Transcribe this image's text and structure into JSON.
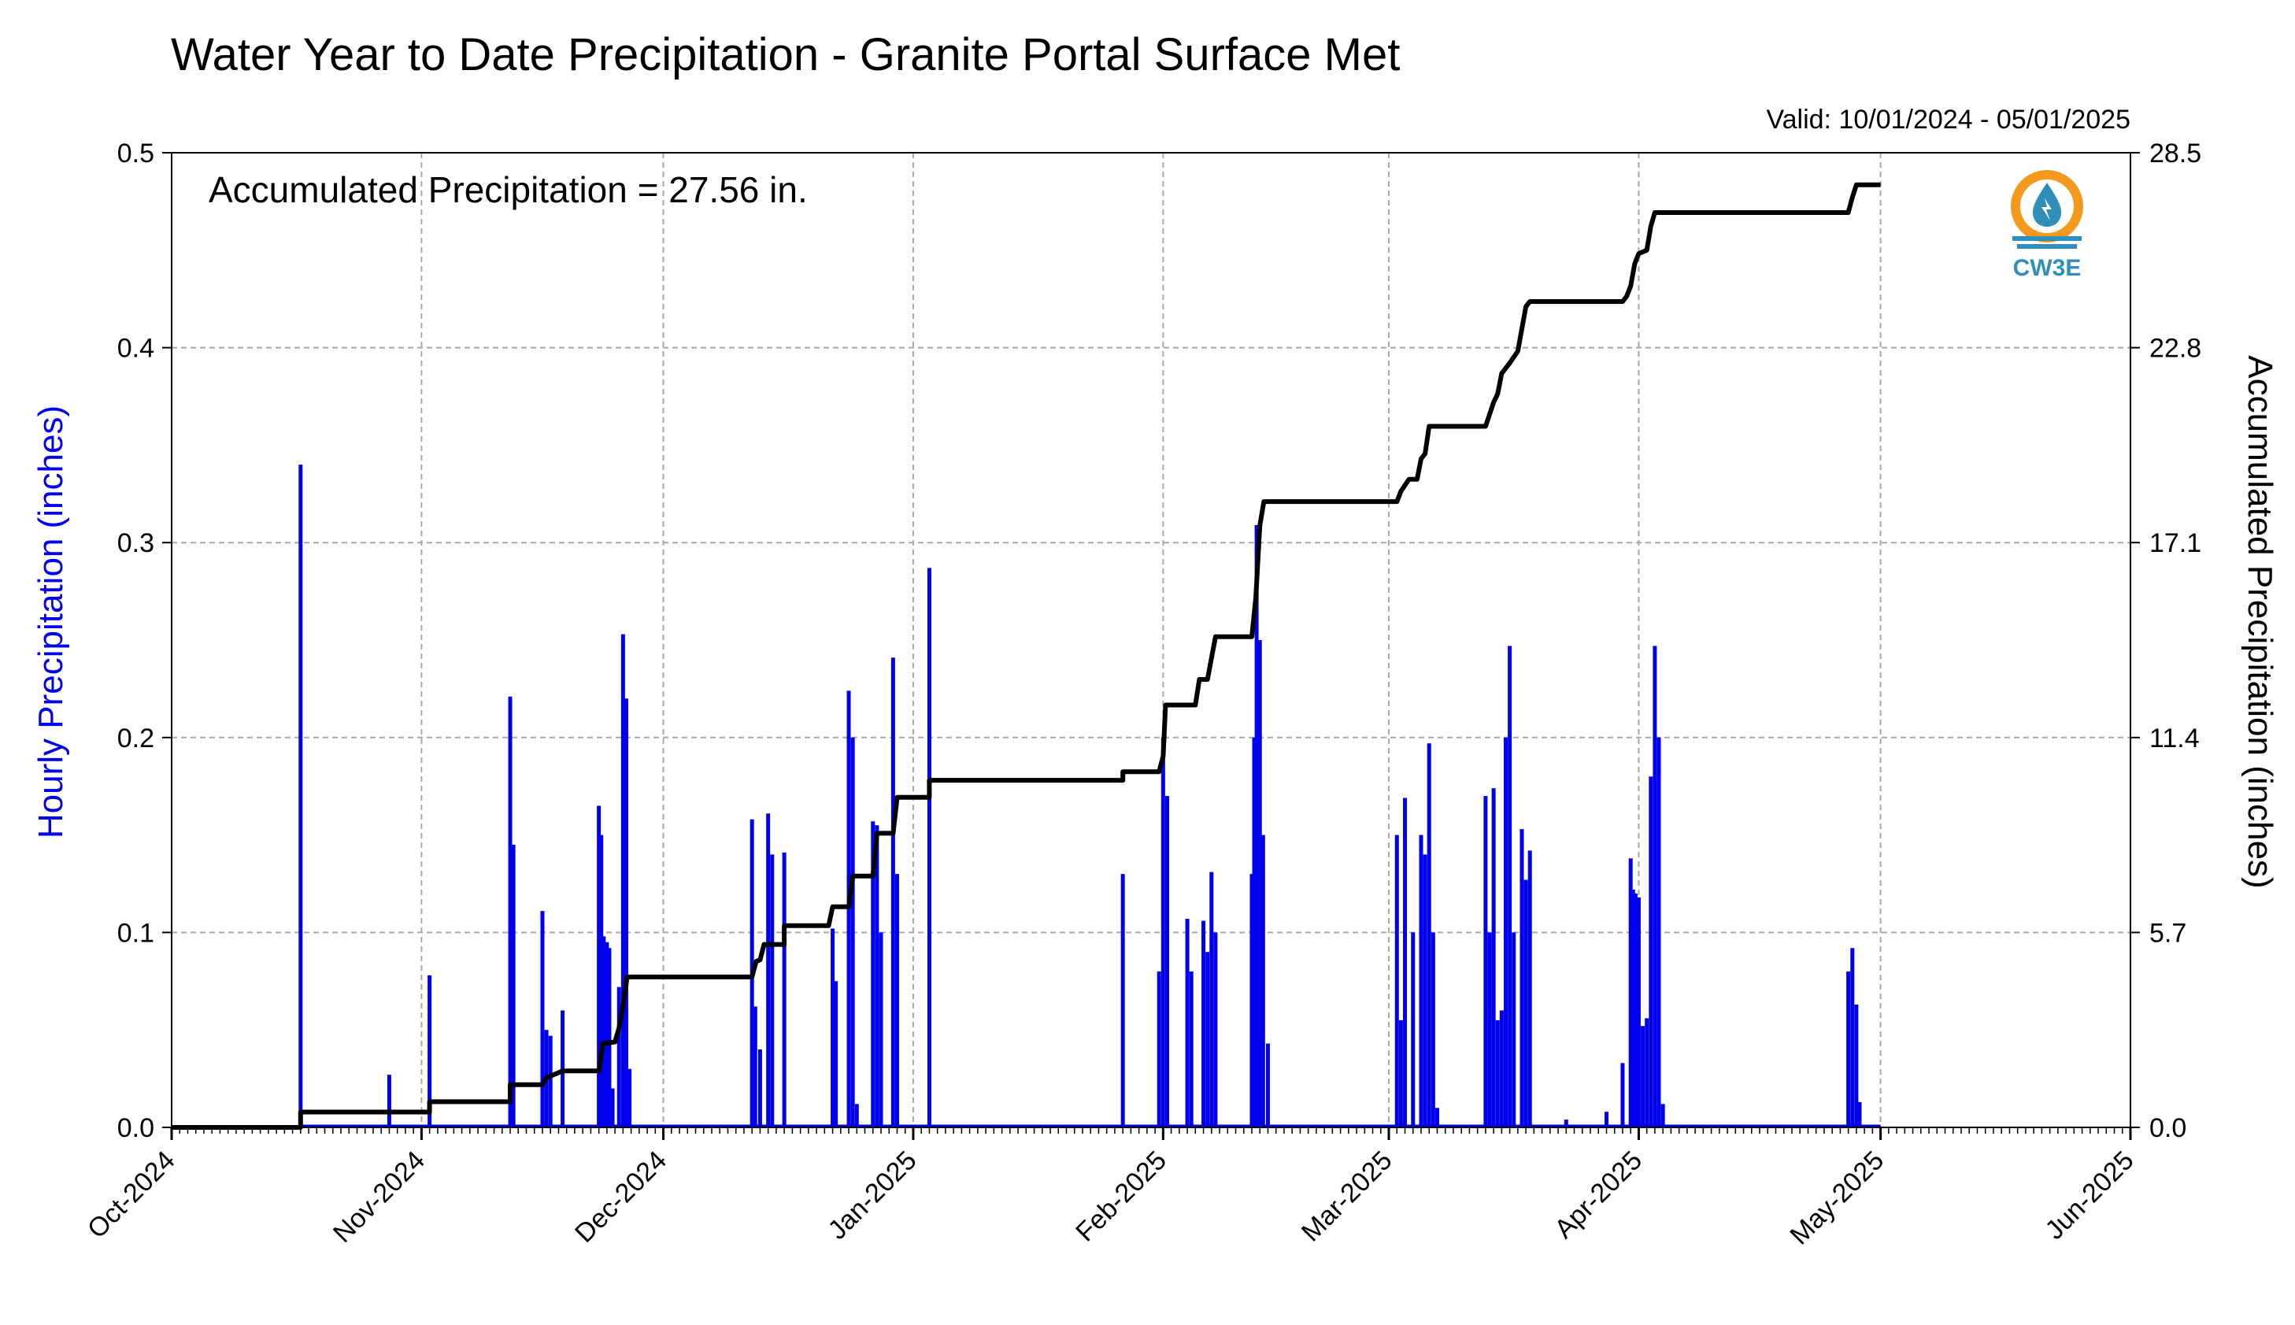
{
  "chart_data": {
    "type": "bar",
    "title": "Water Year to Date Precipitation - Granite Portal Surface Met",
    "subtitle": "Valid: 10/01/2024 - 05/01/2025",
    "annotation": "Accumulated Precipitation = 27.56 in.",
    "ylabel": "Hourly Precipitation (inches)",
    "y2label": "Accumulated Precipitation (inches)",
    "xlim": [
      "2024-10-01",
      "2025-06-01"
    ],
    "ylim": [
      0,
      0.5
    ],
    "y2lim": [
      0,
      28.5
    ],
    "x_tick_labels": [
      "Oct-2024",
      "Nov-2024",
      "Dec-2024",
      "Jan-2025",
      "Feb-2025",
      "Mar-2025",
      "Apr-2025",
      "May-2025",
      "Jun-2025"
    ],
    "x_tick_dates": [
      "2024-10-01",
      "2024-11-01",
      "2024-12-01",
      "2025-01-01",
      "2025-02-01",
      "2025-03-01",
      "2025-04-01",
      "2025-05-01",
      "2025-06-01"
    ],
    "y_tick_labels": [
      "0.0",
      "0.1",
      "0.2",
      "0.3",
      "0.4",
      "0.5"
    ],
    "y_ticks": [
      0,
      0.1,
      0.2,
      0.3,
      0.4,
      0.5
    ],
    "y2_tick_labels": [
      "0.0",
      "5.7",
      "11.4",
      "17.1",
      "22.8",
      "28.5"
    ],
    "y2_ticks": [
      0,
      5.7,
      11.4,
      17.1,
      22.8,
      28.5
    ],
    "grid": true,
    "logo_text": "CW3E",
    "series": [
      {
        "axis": "left",
        "type": "bar",
        "color": "#0000ee",
        "points": [
          [
            "2024-10-17",
            0.34
          ],
          [
            "2024-10-28",
            0.027
          ],
          [
            "2024-11-02",
            0.078
          ],
          [
            "2024-11-12",
            0.221
          ],
          [
            "2024-11-12.4",
            0.145
          ],
          [
            "2024-11-16",
            0.111
          ],
          [
            "2024-11-16.5",
            0.05
          ],
          [
            "2024-11-17",
            0.047
          ],
          [
            "2024-11-18.5",
            0.06
          ],
          [
            "2024-11-23",
            0.165
          ],
          [
            "2024-11-23.3",
            0.15
          ],
          [
            "2024-11-23.6",
            0.098
          ],
          [
            "2024-11-24",
            0.095
          ],
          [
            "2024-11-24.3",
            0.092
          ],
          [
            "2024-11-24.7",
            0.02
          ],
          [
            "2024-11-25.5",
            0.072
          ],
          [
            "2024-11-26",
            0.253
          ],
          [
            "2024-11-26.4",
            0.22
          ],
          [
            "2024-11-26.8",
            0.03
          ],
          [
            "2024-12-12",
            0.158
          ],
          [
            "2024-12-12.4",
            0.062
          ],
          [
            "2024-12-13",
            0.04
          ],
          [
            "2024-12-14",
            0.161
          ],
          [
            "2024-12-14.5",
            0.14
          ],
          [
            "2024-12-16",
            0.141
          ],
          [
            "2024-12-22",
            0.102
          ],
          [
            "2024-12-22.4",
            0.075
          ],
          [
            "2024-12-24",
            0.224
          ],
          [
            "2024-12-24.5",
            0.2
          ],
          [
            "2024-12-25",
            0.012
          ],
          [
            "2024-12-27",
            0.157
          ],
          [
            "2024-12-27.5",
            0.155
          ],
          [
            "2024-12-28",
            0.1
          ],
          [
            "2024-12-29.5",
            0.241
          ],
          [
            "2024-12-30",
            0.13
          ],
          [
            "2025-01-03",
            0.287
          ],
          [
            "2025-01-27",
            0.13
          ],
          [
            "2025-01-31.5",
            0.08
          ],
          [
            "2025-02-01",
            0.2
          ],
          [
            "2025-02-01.5",
            0.17
          ],
          [
            "2025-02-04",
            0.107
          ],
          [
            "2025-02-04.5",
            0.08
          ],
          [
            "2025-02-06",
            0.106
          ],
          [
            "2025-02-06.5",
            0.09
          ],
          [
            "2025-02-07",
            0.131
          ],
          [
            "2025-02-07.5",
            0.1
          ],
          [
            "2025-02-12",
            0.13
          ],
          [
            "2025-02-12.3",
            0.2
          ],
          [
            "2025-02-12.6",
            0.309
          ],
          [
            "2025-02-13",
            0.25
          ],
          [
            "2025-02-13.4",
            0.15
          ],
          [
            "2025-02-14",
            0.043
          ],
          [
            "2025-03-02",
            0.15
          ],
          [
            "2025-03-02.5",
            0.055
          ],
          [
            "2025-03-03",
            0.169
          ],
          [
            "2025-03-04",
            0.1
          ],
          [
            "2025-03-05",
            0.15
          ],
          [
            "2025-03-05.5",
            0.14
          ],
          [
            "2025-03-06",
            0.197
          ],
          [
            "2025-03-06.5",
            0.1
          ],
          [
            "2025-03-07",
            0.01
          ],
          [
            "2025-03-13",
            0.17
          ],
          [
            "2025-03-13.5",
            0.1
          ],
          [
            "2025-03-14",
            0.174
          ],
          [
            "2025-03-14.5",
            0.055
          ],
          [
            "2025-03-15",
            0.06
          ],
          [
            "2025-03-15.5",
            0.2
          ],
          [
            "2025-03-16",
            0.247
          ],
          [
            "2025-03-16.5",
            0.1
          ],
          [
            "2025-03-17.5",
            0.153
          ],
          [
            "2025-03-18",
            0.127
          ],
          [
            "2025-03-18.5",
            0.142
          ],
          [
            "2025-03-23",
            0.004
          ],
          [
            "2025-03-28",
            0.008
          ],
          [
            "2025-03-30",
            0.033
          ],
          [
            "2025-03-31",
            0.138
          ],
          [
            "2025-03-31.3",
            0.122
          ],
          [
            "2025-03-31.6",
            0.12
          ],
          [
            "2025-04-01",
            0.118
          ],
          [
            "2025-04-01.5",
            0.052
          ],
          [
            "2025-04-02",
            0.056
          ],
          [
            "2025-04-02.5",
            0.18
          ],
          [
            "2025-04-03",
            0.247
          ],
          [
            "2025-04-03.5",
            0.2
          ],
          [
            "2025-04-04",
            0.012
          ],
          [
            "2025-04-27",
            0.08
          ],
          [
            "2025-04-27.5",
            0.092
          ],
          [
            "2025-04-28",
            0.063
          ],
          [
            "2025-04-28.4",
            0.013
          ]
        ]
      },
      {
        "axis": "right",
        "type": "line",
        "color": "#000000",
        "points": [
          [
            "2024-10-01",
            0.0
          ],
          [
            "2024-10-17",
            0.0
          ],
          [
            "2024-10-17",
            0.45
          ],
          [
            "2024-11-02",
            0.45
          ],
          [
            "2024-11-02",
            0.75
          ],
          [
            "2024-11-12",
            0.75
          ],
          [
            "2024-11-12",
            1.25
          ],
          [
            "2024-11-16",
            1.25
          ],
          [
            "2024-11-16.5",
            1.45
          ],
          [
            "2024-11-18.5",
            1.65
          ],
          [
            "2024-11-23",
            1.65
          ],
          [
            "2024-11-23.5",
            2.45
          ],
          [
            "2024-11-25",
            2.5
          ],
          [
            "2024-11-25.5",
            2.9
          ],
          [
            "2024-11-26",
            3.55
          ],
          [
            "2024-11-26.5",
            4.4
          ],
          [
            "2024-12-12",
            4.4
          ],
          [
            "2024-12-12.5",
            4.85
          ],
          [
            "2024-12-13",
            4.9
          ],
          [
            "2024-12-13.5",
            5.35
          ],
          [
            "2024-12-16",
            5.35
          ],
          [
            "2024-12-16",
            5.9
          ],
          [
            "2024-12-21.5",
            5.9
          ],
          [
            "2024-12-22",
            6.45
          ],
          [
            "2024-12-24",
            6.45
          ],
          [
            "2024-12-24.5",
            7.35
          ],
          [
            "2024-12-27",
            7.35
          ],
          [
            "2024-12-27.5",
            8.6
          ],
          [
            "2024-12-29.5",
            8.6
          ],
          [
            "2024-12-30",
            9.65
          ],
          [
            "2025-01-03",
            9.65
          ],
          [
            "2025-01-03",
            10.15
          ],
          [
            "2025-01-27",
            10.15
          ],
          [
            "2025-01-27",
            10.4
          ],
          [
            "2025-01-31.5",
            10.4
          ],
          [
            "2025-02-01",
            10.85
          ],
          [
            "2025-02-01.3",
            12.35
          ],
          [
            "2025-02-05",
            12.35
          ],
          [
            "2025-02-05.5",
            13.1
          ],
          [
            "2025-02-06.5",
            13.1
          ],
          [
            "2025-02-07.5",
            14.35
          ],
          [
            "2025-02-12",
            14.35
          ],
          [
            "2025-02-12.5",
            15.5
          ],
          [
            "2025-02-13",
            17.6
          ],
          [
            "2025-02-13.5",
            18.3
          ],
          [
            "2025-03-02",
            18.3
          ],
          [
            "2025-03-02.5",
            18.6
          ],
          [
            "2025-03-03.5",
            18.95
          ],
          [
            "2025-03-04.5",
            18.95
          ],
          [
            "2025-03-05",
            19.55
          ],
          [
            "2025-03-05.5",
            19.7
          ],
          [
            "2025-03-06",
            20.5
          ],
          [
            "2025-03-13",
            20.5
          ],
          [
            "2025-03-13.5",
            20.85
          ],
          [
            "2025-03-14",
            21.2
          ],
          [
            "2025-03-14.5",
            21.45
          ],
          [
            "2025-03-15",
            22.05
          ],
          [
            "2025-03-16",
            22.35
          ],
          [
            "2025-03-17",
            22.7
          ],
          [
            "2025-03-18",
            24.0
          ],
          [
            "2025-03-18.5",
            24.15
          ],
          [
            "2025-03-30",
            24.15
          ],
          [
            "2025-03-30.5",
            24.3
          ],
          [
            "2025-03-31",
            24.6
          ],
          [
            "2025-03-31.5",
            25.25
          ],
          [
            "2025-04-01",
            25.55
          ],
          [
            "2025-04-02",
            25.65
          ],
          [
            "2025-04-02.5",
            26.35
          ],
          [
            "2025-04-03",
            26.75
          ],
          [
            "2025-04-27",
            26.75
          ],
          [
            "2025-04-27.5",
            27.2
          ],
          [
            "2025-04-28",
            27.56
          ],
          [
            "2025-05-01",
            27.56
          ]
        ]
      }
    ]
  }
}
